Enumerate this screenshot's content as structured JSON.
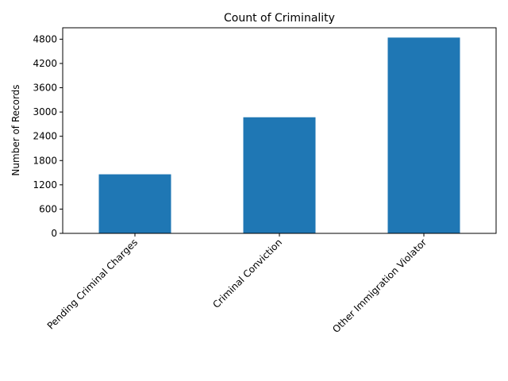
{
  "chart_data": {
    "type": "bar",
    "title": "Count of Criminality",
    "xlabel": "",
    "ylabel": "Number of Records",
    "categories": [
      "Pending Criminal Charges",
      "Criminal Conviction",
      "Other Immigration Violator"
    ],
    "values": [
      1460,
      2870,
      4840
    ],
    "ylim": [
      0,
      5082
    ],
    "yticks": [
      0,
      600,
      1200,
      1800,
      2400,
      3000,
      3600,
      4200,
      4800
    ],
    "bar_color": "#1f77b4",
    "grid": false,
    "legend": "none"
  }
}
